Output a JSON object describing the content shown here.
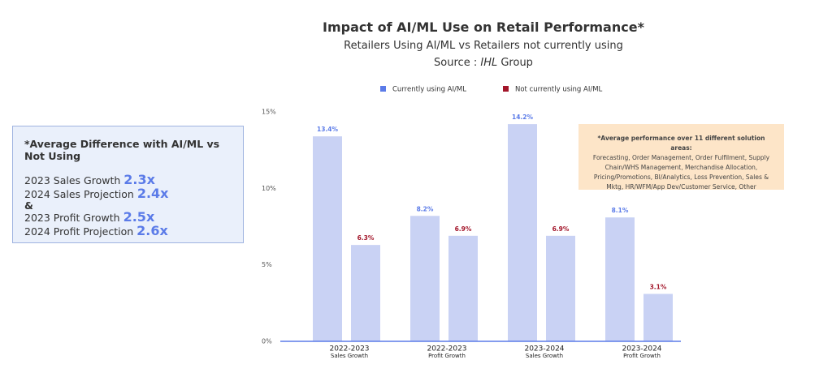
{
  "chart_data": {
    "type": "bar",
    "title": "Impact of AI/ML Use on Retail Performance*",
    "subtitle": "Retailers Using AI/ML vs Retailers not currently using",
    "source": {
      "prefix": "Source :",
      "org": "IHL",
      "suffix": "Group"
    },
    "categories": [
      "2022-2023",
      "2022-2023",
      "2023-2024",
      "2023-2024"
    ],
    "category_sublabels": [
      "Sales Growth",
      "Profit Growth",
      "Sales Growth",
      "Profit Growth"
    ],
    "series": [
      {
        "name": "Currently using AI/ML",
        "color": "#5b7be8",
        "values": [
          13.4,
          8.2,
          14.2,
          8.1
        ],
        "value_labels": [
          "13.4%",
          "8.2%",
          "14.2%",
          "8.1%"
        ]
      },
      {
        "name": "Not currently using AI/ML",
        "color": "#a3162a",
        "values": [
          6.3,
          6.9,
          6.9,
          3.1
        ],
        "value_labels": [
          "6.3%",
          "6.9%",
          "6.9%",
          "3.1%"
        ]
      }
    ],
    "bar_color": "#c9d2f4",
    "ylim": [
      0,
      15
    ],
    "yticks": [
      {
        "value": 0,
        "label": "0%"
      },
      {
        "value": 5,
        "label": "5%"
      },
      {
        "value": 10,
        "label": "10%"
      },
      {
        "value": 15,
        "label": "15%"
      }
    ]
  },
  "summary_box": {
    "title": "*Average Difference with AI/ML vs Not Using",
    "items": [
      {
        "label": "2023 Sales Growth",
        "value": "2.3x"
      },
      {
        "label": "2024 Sales Projection",
        "value": "2.4x"
      },
      {
        "label": "2023 Profit Growth",
        "value": "2.5x"
      },
      {
        "label": "2024 Profit Projection",
        "value": "2.6x"
      }
    ],
    "separator": "&"
  },
  "note_box": {
    "title": "*Average performance over 11 different solution areas:",
    "text": "Forecasting, Order Management, Order Fulfilment, Supply Chain/WHS Management, Merchandise Allocation, Pricing/Promotions, BI/Analytics, Loss Prevention, Sales & Mktg, HR/WFM/App Dev/Customer Service, Other"
  }
}
